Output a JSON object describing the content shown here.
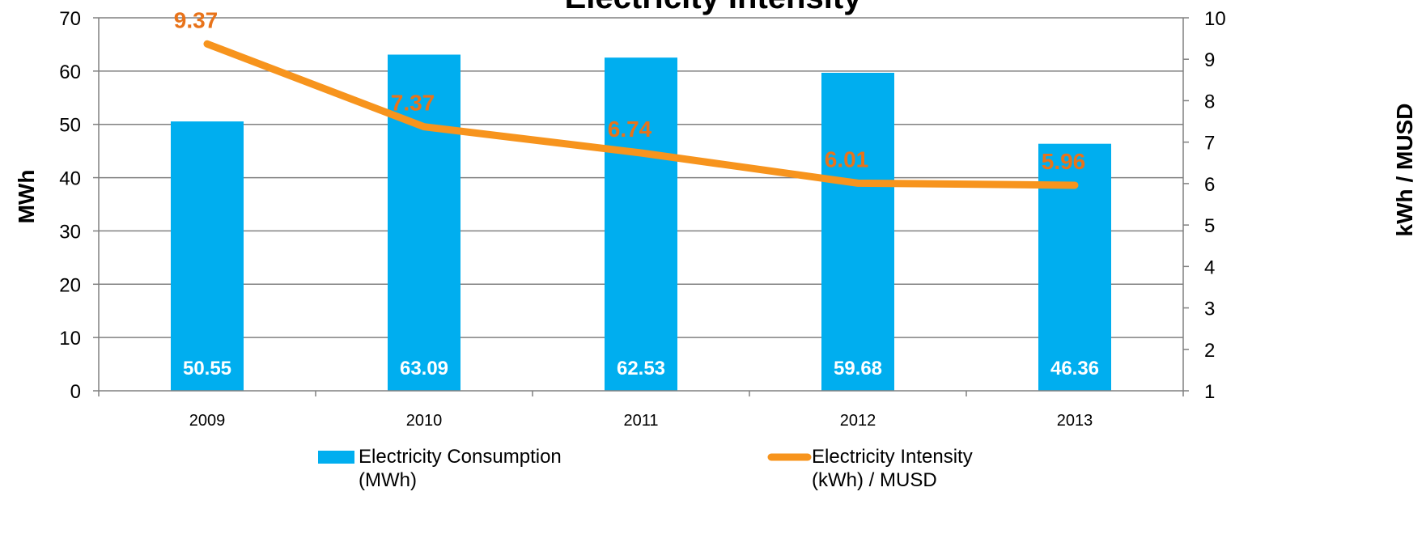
{
  "chart_data": {
    "type": "bar",
    "title": "Electricity Intensity",
    "categories": [
      "2009",
      "2010",
      "2011",
      "2012",
      "2013"
    ],
    "series": [
      {
        "name": "Electricity Consumption (MWh)",
        "type": "bar",
        "axis": "left",
        "values": [
          50.55,
          63.09,
          62.53,
          59.68,
          46.36
        ],
        "labels": [
          "50.55",
          "63.09",
          "62.53",
          "59.68",
          "46.36"
        ]
      },
      {
        "name": "Electricity Intensity (kWh) / MUSD",
        "type": "line",
        "axis": "right",
        "values": [
          9.37,
          7.37,
          6.74,
          6.01,
          5.96
        ],
        "labels": [
          "9.37",
          "7.37",
          "6.74",
          "6.01",
          "5.96"
        ]
      }
    ],
    "ylabel": "MWh",
    "ylim": [
      0,
      70
    ],
    "yticks": [
      "0",
      "10",
      "20",
      "30",
      "40",
      "50",
      "60",
      "70"
    ],
    "y2label": "kWh / MUSD",
    "y2lim": [
      1,
      10
    ],
    "y2ticks": [
      "1",
      "2",
      "3",
      "4",
      "5",
      "6",
      "7",
      "8",
      "9",
      "10"
    ],
    "legend": {
      "position": "bottom",
      "items": [
        {
          "line1": "Electricity Consumption",
          "line2": "(MWh)"
        },
        {
          "line1": "Electricity Intensity",
          "line2": "(kWh) / MUSD"
        }
      ]
    },
    "grid": true,
    "colors": {
      "bar": "#00aeef",
      "line": "#f7941d",
      "line_label": "#e8731a",
      "bar_label": "#ffffff",
      "grid": "#808080"
    }
  }
}
